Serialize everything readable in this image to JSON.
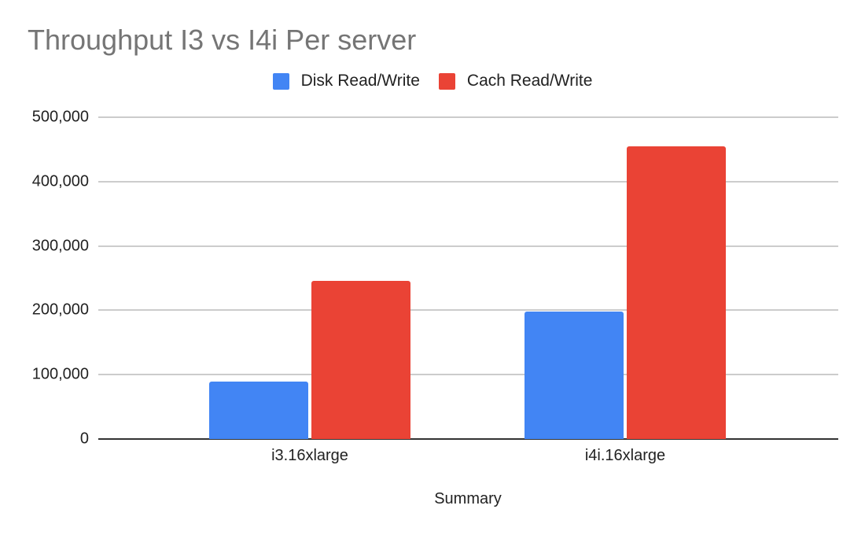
{
  "chart_data": {
    "type": "bar",
    "title": "Throughput I3 vs I4i Per server",
    "xlabel": "Summary",
    "ylabel": "",
    "categories": [
      "i3.16xlarge",
      "i4i.16xlarge"
    ],
    "series": [
      {
        "name": "Disk Read/Write",
        "color": "#4285f4",
        "values": [
          89000,
          198000
        ]
      },
      {
        "name": "Cach Read/Write",
        "color": "#ea4335",
        "values": [
          246000,
          455000
        ]
      }
    ],
    "ylim": [
      0,
      500000
    ],
    "yticks": [
      0,
      100000,
      200000,
      300000,
      400000,
      500000
    ],
    "ytick_labels": [
      "0",
      "100,000",
      "200,000",
      "300,000",
      "400,000",
      "500,000"
    ],
    "grid": true,
    "legend_position": "top"
  },
  "title": "Throughput I3 vs I4i Per server",
  "legend": [
    {
      "label": "Disk Read/Write",
      "color": "#4285f4"
    },
    {
      "label": "Cach Read/Write",
      "color": "#ea4335"
    }
  ],
  "x_axis": {
    "label": "Summary",
    "ticks": [
      "i3.16xlarge",
      "i4i.16xlarge"
    ]
  },
  "y_axis": {
    "ticks": [
      "0",
      "100,000",
      "200,000",
      "300,000",
      "400,000",
      "500,000"
    ]
  }
}
